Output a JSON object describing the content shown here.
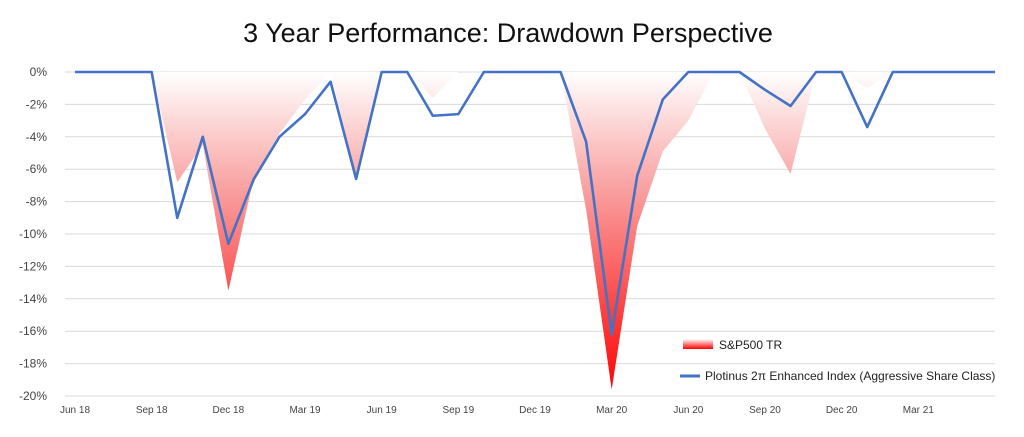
{
  "chart_data": {
    "type": "area",
    "title": "3 Year Performance: Drawdown Perspective",
    "xlabel": "",
    "ylabel": "",
    "y_tick_labels": [
      "0%",
      "-2%",
      "-4%",
      "-6%",
      "-8%",
      "-10%",
      "-12%",
      "-14%",
      "-16%",
      "-18%",
      "-20%"
    ],
    "ylim": [
      -20,
      0
    ],
    "grid": true,
    "legend_position": "bottom-right",
    "x_tick_labels": [
      "Jun 18",
      "Sep 18",
      "Dec 18",
      "Mar 19",
      "Jun 19",
      "Sep 19",
      "Dec 19",
      "Mar 20",
      "Jun 20",
      "Sep 20",
      "Dec 20",
      "Mar 21"
    ],
    "x": [
      "Jun 18",
      "Jul 18",
      "Aug 18",
      "Sep 18",
      "Oct 18",
      "Nov 18",
      "Dec 18",
      "Jan 19",
      "Feb 19",
      "Mar 19",
      "Apr 19",
      "May 19",
      "Jun 19",
      "Jul 19",
      "Aug 19",
      "Sep 19",
      "Oct 19",
      "Nov 19",
      "Dec 19",
      "Jan 20",
      "Feb 20",
      "Mar 20",
      "Apr 20",
      "May 20",
      "Jun 20",
      "Jul 20",
      "Aug 20",
      "Sep 20",
      "Oct 20",
      "Nov 20",
      "Dec 20",
      "Jan 21",
      "Feb 21",
      "Mar 21",
      "Apr 21",
      "May 21",
      "Jun 21"
    ],
    "series": [
      {
        "name": "S&P500 TR",
        "kind": "area-gradient",
        "color_top": "#ffffff",
        "color_bottom": "#ff0000",
        "values": [
          0,
          0,
          0,
          0,
          -6.8,
          -4.5,
          -13.5,
          -6.5,
          -3.8,
          -1.7,
          0,
          -6.5,
          0,
          0,
          -1.6,
          0,
          0,
          0,
          0,
          0,
          -8.5,
          -19.6,
          -9.5,
          -4.9,
          -3.0,
          0,
          0,
          -3.5,
          -6.3,
          0,
          0,
          -1.0,
          0,
          0,
          0,
          0,
          0
        ]
      },
      {
        "name": "Plotinus 2π Enhanced Index (Aggressive Share Class)",
        "kind": "line",
        "color": "#4472c4",
        "values": [
          0,
          0,
          0,
          0,
          -9.0,
          -4.0,
          -10.6,
          -6.6,
          -4.0,
          -2.6,
          -0.6,
          -6.6,
          0,
          0,
          -2.7,
          -2.6,
          0,
          0,
          0,
          0,
          -4.3,
          -16.2,
          -6.4,
          -1.7,
          0,
          0,
          0,
          -1.1,
          -2.1,
          0,
          0,
          -3.4,
          0,
          0,
          0,
          0,
          0
        ]
      }
    ]
  }
}
